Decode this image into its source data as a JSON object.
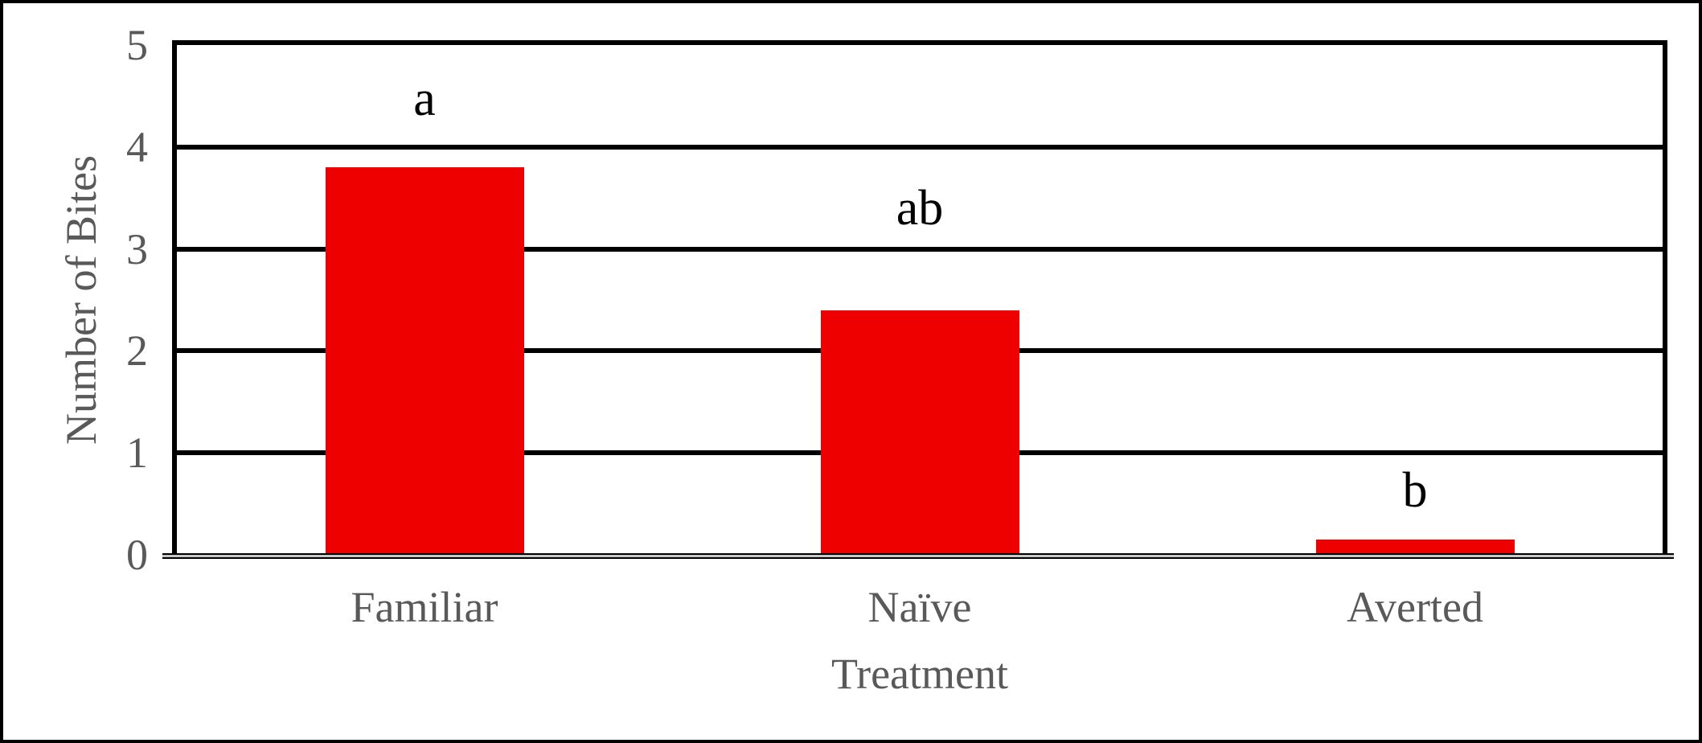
{
  "chart_data": {
    "type": "bar",
    "title": "",
    "categories": [
      "Familiar",
      "Naïve",
      "Averted"
    ],
    "values": [
      3.8,
      2.4,
      0.15
    ],
    "xlabel": "Treatment",
    "ylabel": "Number of Bites",
    "ylim": [
      0,
      5
    ],
    "yticks": [
      0,
      1,
      2,
      3,
      4,
      5
    ],
    "grid": "horizontal-major",
    "legend": "none",
    "annotations": [
      {
        "text": "a",
        "category": "Familiar",
        "y": 4.47
      },
      {
        "text": "ab",
        "category": "Naïve",
        "y": 3.4
      },
      {
        "text": "b",
        "category": "Averted",
        "y": 0.63
      }
    ]
  },
  "colors": {
    "bar": "#ee0000",
    "gridline": "#000000",
    "plot_border": "#000000",
    "outer_border": "#000000",
    "axis_text": "#595959",
    "annotation_text": "#000000",
    "background": "#ffffff"
  }
}
